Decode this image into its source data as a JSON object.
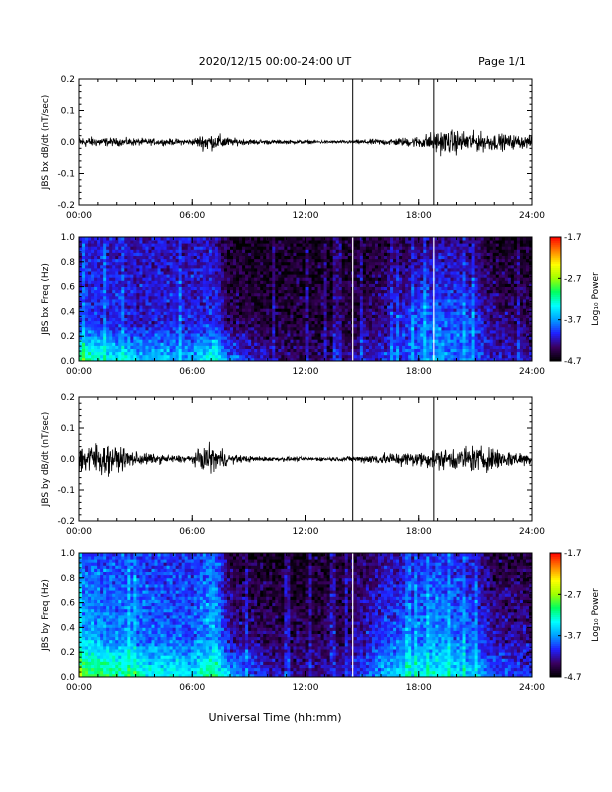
{
  "header": {
    "title": "2020/12/15  00:00-24:00 UT",
    "page": "Page 1/1"
  },
  "xaxis": {
    "label": "Universal Time (hh:mm)",
    "ticks": [
      "00:00",
      "06:00",
      "12:00",
      "18:00",
      "24:00"
    ],
    "range_hours": [
      0,
      24
    ]
  },
  "colorbar": {
    "label": "Log₁₀ Power",
    "ticks": [
      "-1.7",
      "-2.7",
      "-3.7",
      "-4.7"
    ],
    "range": [
      -4.7,
      -1.7
    ],
    "colors": [
      "#000000",
      "#3a0060",
      "#2020ff",
      "#00a0ff",
      "#00ffff",
      "#00ff60",
      "#a0ff00",
      "#ffff00",
      "#ff8000",
      "#ff0000"
    ]
  },
  "panels": [
    {
      "kind": "timeseries",
      "ylabel": "JBS bx dB/dt (nT/sec)",
      "ylim": [
        -0.2,
        0.2
      ],
      "yticks": [
        "0.2",
        "0.1",
        "0.0",
        "-0.1",
        "-0.2"
      ]
    },
    {
      "kind": "spectrogram",
      "ylabel": "JBS bx Freq (Hz)",
      "ylim": [
        0.0,
        1.0
      ],
      "yticks": [
        "1.0",
        "0.8",
        "0.6",
        "0.4",
        "0.2",
        "0.0"
      ]
    },
    {
      "kind": "timeseries",
      "ylabel": "JBS by dB/dt (nT/sec)",
      "ylim": [
        -0.2,
        0.2
      ],
      "yticks": [
        "0.2",
        "0.1",
        "0.0",
        "-0.1",
        "-0.2"
      ]
    },
    {
      "kind": "spectrogram",
      "ylabel": "JBS by Freq (Hz)",
      "ylim": [
        0.0,
        1.0
      ],
      "yticks": [
        "1.0",
        "0.8",
        "0.6",
        "0.4",
        "0.2",
        "0.0"
      ]
    }
  ],
  "chart_data": [
    {
      "type": "line",
      "ylabel": "JBS bx dB/dt (nT/sec)",
      "x_unit": "hours UT",
      "ylim": [
        -0.2,
        0.2
      ],
      "spikes_hours": [
        14.5,
        18.8
      ],
      "envelope": {
        "x": [
          0,
          1,
          2,
          3,
          4,
          5,
          6,
          6.8,
          7.2,
          7.6,
          8,
          9,
          10,
          11,
          12,
          13,
          14,
          15,
          16,
          17,
          18,
          19,
          20,
          21,
          22,
          23,
          24
        ],
        "amplitude": [
          0.015,
          0.012,
          0.01,
          0.01,
          0.008,
          0.008,
          0.008,
          0.025,
          0.018,
          0.02,
          0.01,
          0.007,
          0.006,
          0.005,
          0.005,
          0.004,
          0.004,
          0.006,
          0.008,
          0.01,
          0.015,
          0.03,
          0.03,
          0.025,
          0.022,
          0.018,
          0.015
        ]
      }
    },
    {
      "type": "heatmap",
      "ylabel": "JBS bx Freq (Hz)",
      "x_unit": "hours UT",
      "ylim": [
        0.0,
        1.0
      ],
      "zlim": [
        -4.7,
        -1.7
      ],
      "data_gaps_hours": [
        14.5,
        18.8
      ],
      "typical_log_power": {
        "x": [
          0,
          3,
          6,
          7.2,
          8,
          10,
          12,
          14,
          16,
          18,
          19,
          20,
          21,
          22,
          24
        ],
        "low_freq": [
          -3.0,
          -3.5,
          -3.6,
          -3.2,
          -3.8,
          -4.2,
          -4.4,
          -4.3,
          -4.0,
          -3.9,
          -3.7,
          -3.8,
          -3.9,
          -4.1,
          -4.2
        ],
        "mid_freq": [
          -4.0,
          -4.1,
          -4.1,
          -4.0,
          -4.4,
          -4.5,
          -4.5,
          -4.5,
          -4.3,
          -3.9,
          -3.8,
          -3.9,
          -4.0,
          -4.3,
          -4.4
        ],
        "high_freq": [
          -4.1,
          -4.2,
          -4.2,
          -4.2,
          -4.6,
          -4.6,
          -4.6,
          -4.6,
          -4.5,
          -4.4,
          -4.3,
          -4.3,
          -4.4,
          -4.6,
          -4.6
        ]
      }
    },
    {
      "type": "line",
      "ylabel": "JBS by dB/dt (nT/sec)",
      "x_unit": "hours UT",
      "ylim": [
        -0.2,
        0.2
      ],
      "spikes_hours": [
        14.5,
        18.8
      ],
      "envelope": {
        "x": [
          0,
          1,
          2,
          3,
          4,
          5,
          6,
          6.8,
          7.2,
          7.6,
          8,
          9,
          10,
          11,
          12,
          13,
          14,
          15,
          16,
          17,
          18,
          19,
          20,
          21,
          22,
          23,
          24
        ],
        "amplitude": [
          0.04,
          0.045,
          0.03,
          0.02,
          0.012,
          0.01,
          0.01,
          0.04,
          0.03,
          0.025,
          0.012,
          0.008,
          0.006,
          0.006,
          0.005,
          0.005,
          0.006,
          0.01,
          0.015,
          0.018,
          0.02,
          0.025,
          0.03,
          0.035,
          0.03,
          0.02,
          0.015
        ]
      }
    },
    {
      "type": "heatmap",
      "ylabel": "JBS by Freq (Hz)",
      "x_unit": "hours UT",
      "ylim": [
        0.0,
        1.0
      ],
      "zlim": [
        -4.7,
        -1.7
      ],
      "data_gaps_hours": [
        14.5
      ],
      "typical_log_power": {
        "x": [
          0,
          3,
          6,
          7.2,
          8,
          10,
          12,
          14,
          16,
          18,
          19,
          20,
          21,
          22,
          24
        ],
        "low_freq": [
          -2.8,
          -3.2,
          -3.4,
          -3.0,
          -3.6,
          -4.1,
          -4.3,
          -4.2,
          -3.6,
          -3.4,
          -3.3,
          -3.4,
          -3.6,
          -3.9,
          -4.0
        ],
        "mid_freq": [
          -3.6,
          -3.8,
          -3.9,
          -3.6,
          -4.2,
          -4.4,
          -4.4,
          -4.4,
          -4.0,
          -3.8,
          -3.7,
          -3.8,
          -3.9,
          -4.2,
          -4.3
        ],
        "high_freq": [
          -3.9,
          -4.0,
          -4.0,
          -3.8,
          -4.5,
          -4.6,
          -4.6,
          -4.5,
          -4.3,
          -4.1,
          -4.0,
          -4.1,
          -4.2,
          -4.5,
          -4.5
        ]
      }
    }
  ]
}
